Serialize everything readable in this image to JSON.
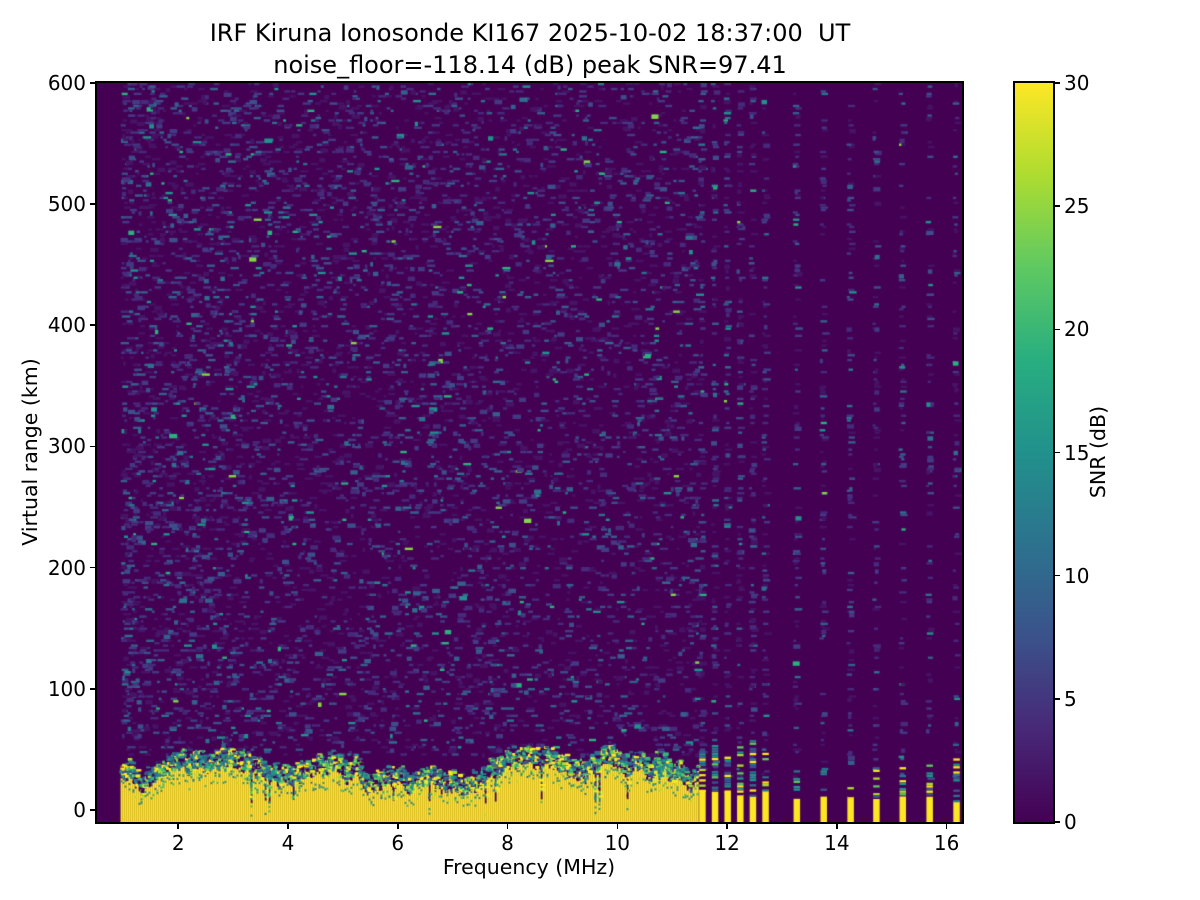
{
  "title": {
    "line1": "IRF Kiruna Ionosonde KI167 2025-10-02 18:37:00  UT",
    "line2": "noise_floor=-118.14 (dB) peak SNR=97.41"
  },
  "axes": {
    "xlabel": "Frequency (MHz)",
    "ylabel": "Virtual range (km)",
    "x_ticks": [
      2,
      4,
      6,
      8,
      10,
      12,
      14,
      16
    ],
    "y_ticks": [
      0,
      100,
      200,
      300,
      400,
      500,
      600
    ]
  },
  "colorbar": {
    "label": "SNR (dB)",
    "ticks": [
      0,
      5,
      10,
      15,
      20,
      25,
      30
    ],
    "vmin": 0,
    "vmax": 30
  },
  "chart_data": {
    "type": "heatmap",
    "title": "IRF Kiruna Ionosonde KI167 2025-10-02 18:37:00  UT",
    "subtitle": "noise_floor=-118.14 (dB) peak SNR=97.41",
    "xlabel": "Frequency (MHz)",
    "ylabel": "Virtual range (km)",
    "value_label": "SNR (dB)",
    "xlim": [
      0.52,
      16.28
    ],
    "ylim": [
      -10,
      600
    ],
    "vmin": 0,
    "vmax": 30,
    "colormap": "viridis",
    "colormap_stops": [
      "#440154",
      "#482878",
      "#3b528b",
      "#2c728e",
      "#21918c",
      "#28ae80",
      "#5ec962",
      "#addc30",
      "#fde725"
    ],
    "noise_floor_db": -118.14,
    "peak_snr_db": 97.41,
    "station": "IRF Kiruna Ionosonde KI167",
    "timestamp_ut": "2025-10-02 18:37:00",
    "sweep": {
      "continuous_range_mhz": [
        0.95,
        11.45
      ],
      "discrete_frequencies_mhz": [
        11.55,
        11.78,
        12.01,
        12.24,
        12.47,
        12.7,
        13.27,
        13.76,
        14.25,
        14.72,
        15.2,
        15.69,
        16.18
      ]
    },
    "ground_echo_band": {
      "description": "saturated ground/near-range echo, SNR ~30 dB (yellow), from below 0 km up to jagged top",
      "top_km_min": 12,
      "top_km_max": 38,
      "snr_db": 30
    },
    "background_snr_db": 0,
    "noise_speckle": {
      "description": "sparse horizontal dashes of low SNR receiver noise",
      "snr_range_db": [
        1,
        12
      ],
      "count_continuous": 6500,
      "count_per_discrete_column": 120
    },
    "seed": 42
  }
}
